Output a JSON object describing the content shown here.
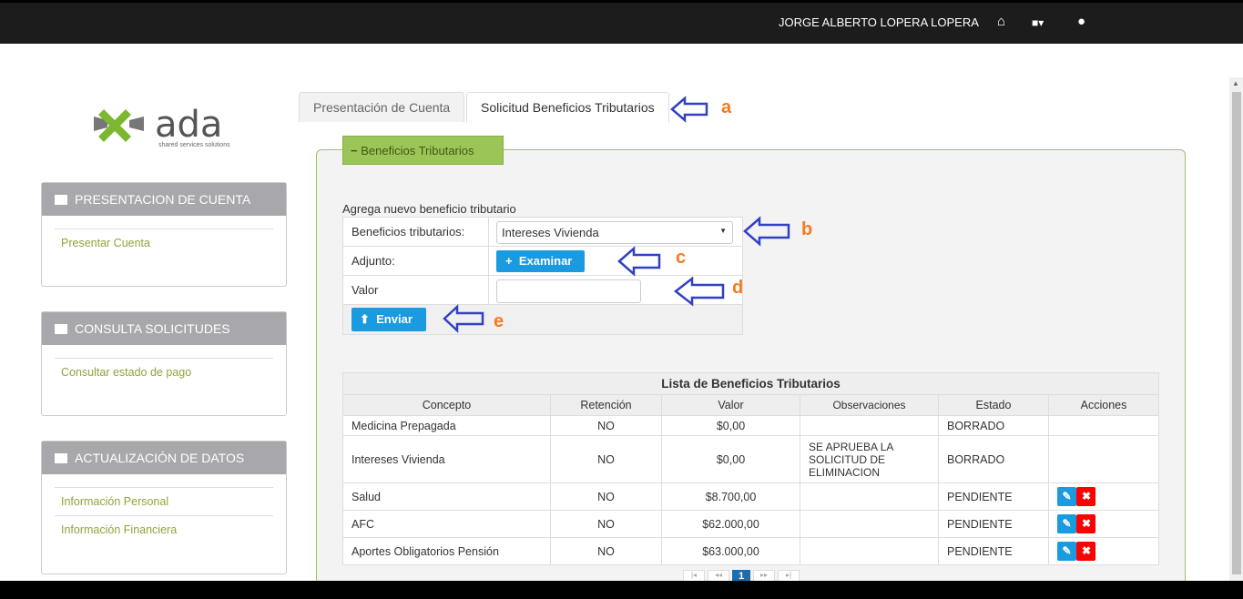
{
  "header": {
    "user": "JORGE ALBERTO LOPERA LOPERA",
    "icons": [
      "home-icon",
      "briefcase-icon",
      "user-icon"
    ]
  },
  "logo": {
    "name": "ada",
    "tagline": "shared services solutions"
  },
  "sidebar": [
    {
      "title": "PRESENTACION DE CUENTA",
      "items": [
        "Presentar Cuenta"
      ]
    },
    {
      "title": "CONSULTA SOLICITUDES",
      "items": [
        "Consultar estado de pago"
      ]
    },
    {
      "title": "ACTUALIZACIÓN DE DATOS",
      "items": [
        "Información Personal",
        "Información Financiera"
      ]
    }
  ],
  "tabs": [
    "Presentación de Cuenta",
    "Solicitud Beneficios Tributarios"
  ],
  "section": {
    "legend": "Beneficios Tributarios",
    "subtitle": "Agrega nuevo beneficio tributario"
  },
  "form": {
    "beneficio_label": "Beneficios tributarios:",
    "beneficio_value": "Intereses Vivienda",
    "adjunto_label": "Adjunto:",
    "examinar": "Examinar",
    "valor_label": "Valor",
    "valor_value": "",
    "enviar": "Enviar"
  },
  "annotations": [
    "a",
    "b",
    "c",
    "d",
    "e"
  ],
  "table": {
    "title": "Lista de Beneficios Tributarios",
    "headers": [
      "Concepto",
      "Retención",
      "Valor",
      "Observaciones",
      "Estado",
      "Acciones"
    ],
    "rows": [
      [
        "Medicina Prepagada",
        "NO",
        "$0,00",
        "",
        "BORRADO"
      ],
      [
        "Intereses Vivienda",
        "NO",
        "$0,00",
        "SE APRUEBA LA SOLICITUD DE ELIMINACION",
        "BORRADO"
      ],
      [
        "Salud",
        "NO",
        "$8.700,00",
        "",
        "PENDIENTE"
      ],
      [
        "AFC",
        "NO",
        "$62.000,00",
        "",
        "PENDIENTE"
      ],
      [
        "Aportes Obligatorios Pensión",
        "NO",
        "$63.000,00",
        "",
        "PENDIENTE"
      ]
    ]
  },
  "pager": {
    "current": "1"
  },
  "colors": {
    "accent": "#9cc558",
    "button": "#1a9be0",
    "delete": "#ff0000",
    "link": "#8ea53a"
  }
}
